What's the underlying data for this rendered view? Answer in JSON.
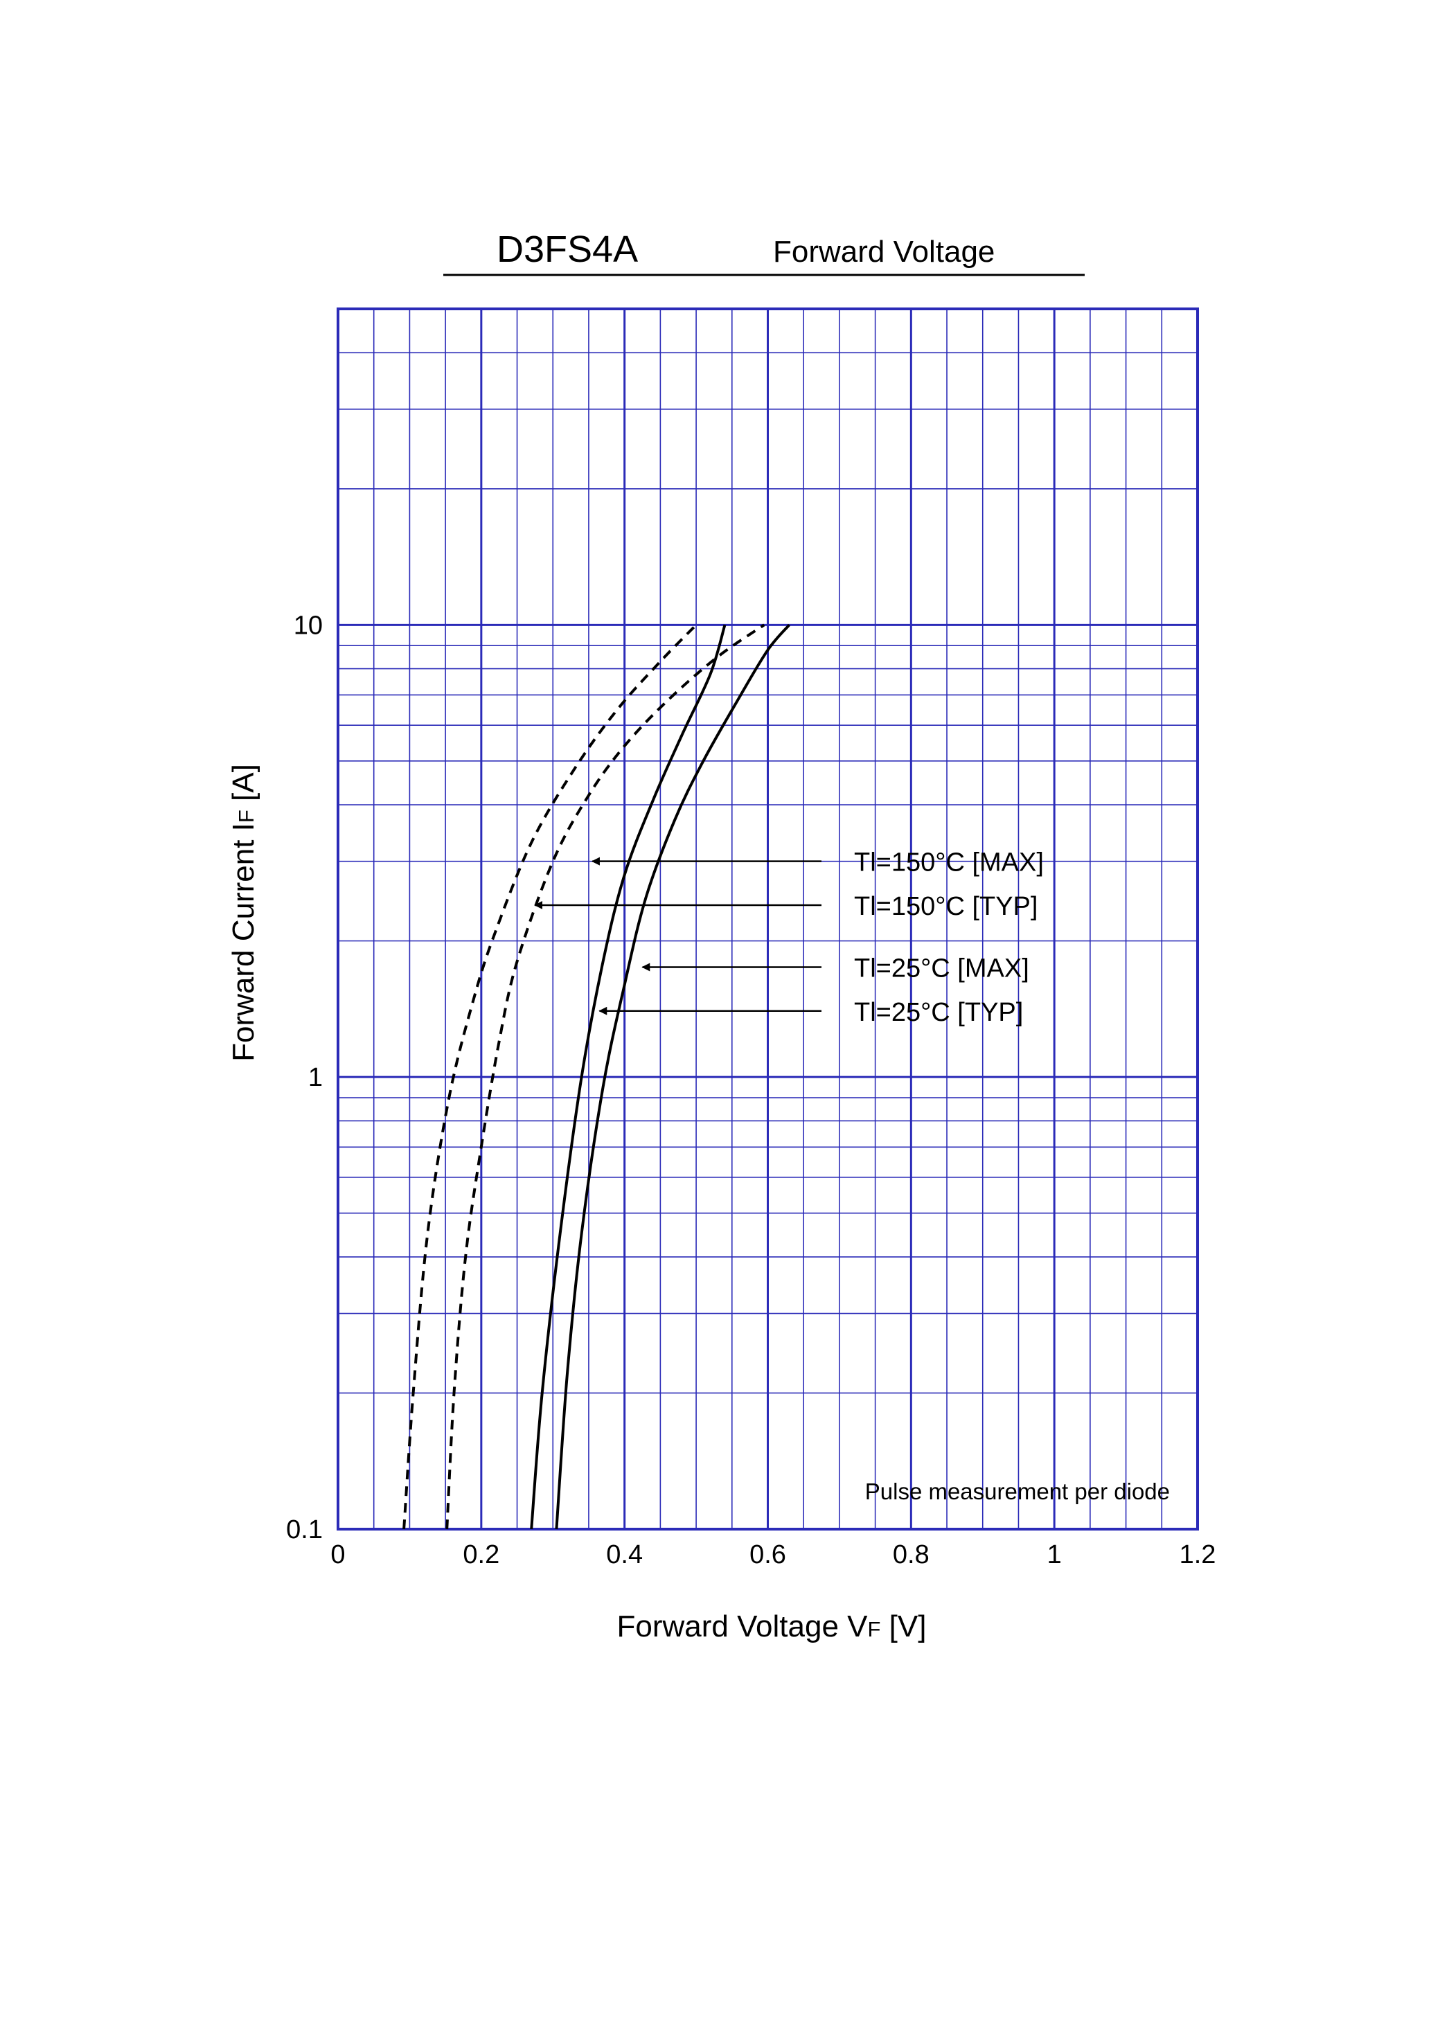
{
  "header": {
    "part_number": "D3FS4A",
    "chart_name": "Forward Voltage"
  },
  "chart_data": {
    "type": "line",
    "title": "D3FS4A Forward Voltage",
    "xlabel": {
      "main": "Forward Voltage  V",
      "sub": "F",
      "unit": "  [V]"
    },
    "ylabel": {
      "main": "Forward Current  I",
      "sub": "F",
      "unit": "  [A]"
    },
    "xlim": [
      0,
      1.2
    ],
    "ylim": [
      0.1,
      50
    ],
    "y_scale": "log",
    "grid": true,
    "x_ticks": [
      "0",
      "0.2",
      "0.4",
      "0.6",
      "0.8",
      "1",
      "1.2"
    ],
    "y_ticks": [
      "0.1",
      "1",
      "10"
    ],
    "grid_color": "#2b2bb8",
    "annotation": "Pulse measurement per diode",
    "series": [
      {
        "name": "Tl=150°C [MAX]",
        "line_style": "dashed",
        "points": [
          [
            0.152,
            0.1
          ],
          [
            0.162,
            0.2
          ],
          [
            0.178,
            0.4
          ],
          [
            0.2,
            0.7
          ],
          [
            0.225,
            1.2
          ],
          [
            0.25,
            1.8
          ],
          [
            0.3,
            3.0
          ],
          [
            0.35,
            4.2
          ],
          [
            0.4,
            5.4
          ],
          [
            0.46,
            6.8
          ],
          [
            0.53,
            8.5
          ],
          [
            0.595,
            10
          ]
        ]
      },
      {
        "name": "Tl=150°C [TYP]",
        "line_style": "dashed",
        "points": [
          [
            0.092,
            0.1
          ],
          [
            0.105,
            0.2
          ],
          [
            0.125,
            0.45
          ],
          [
            0.155,
            0.9
          ],
          [
            0.19,
            1.5
          ],
          [
            0.22,
            2.1
          ],
          [
            0.27,
            3.3
          ],
          [
            0.33,
            4.8
          ],
          [
            0.39,
            6.5
          ],
          [
            0.45,
            8.3
          ],
          [
            0.5,
            10
          ]
        ]
      },
      {
        "name": "Tl=25°C [MAX]",
        "line_style": "solid",
        "points": [
          [
            0.305,
            0.1
          ],
          [
            0.32,
            0.22
          ],
          [
            0.34,
            0.45
          ],
          [
            0.37,
            0.95
          ],
          [
            0.4,
            1.6
          ],
          [
            0.43,
            2.5
          ],
          [
            0.47,
            3.7
          ],
          [
            0.51,
            5.0
          ],
          [
            0.56,
            6.9
          ],
          [
            0.6,
            8.8
          ],
          [
            0.63,
            10
          ]
        ]
      },
      {
        "name": "Tl=25°C [TYP]",
        "line_style": "solid",
        "points": [
          [
            0.27,
            0.1
          ],
          [
            0.285,
            0.2
          ],
          [
            0.31,
            0.45
          ],
          [
            0.34,
            1.0
          ],
          [
            0.37,
            1.8
          ],
          [
            0.4,
            2.8
          ],
          [
            0.44,
            4.1
          ],
          [
            0.48,
            5.7
          ],
          [
            0.52,
            7.8
          ],
          [
            0.54,
            10
          ]
        ]
      }
    ],
    "callouts": [
      {
        "series": "Tl=150°C [MAX]",
        "label": "Tl=150°C [MAX]",
        "arrow_to": [
          0.355,
          3.0
        ]
      },
      {
        "series": "Tl=150°C [TYP]",
        "label": "Tl=150°C [TYP]",
        "arrow_to": [
          0.275,
          2.4
        ]
      },
      {
        "series": "Tl=25°C [MAX]",
        "label": "Tl=25°C [MAX]",
        "arrow_to": [
          0.425,
          1.75
        ]
      },
      {
        "series": "Tl=25°C [TYP]",
        "label": "Tl=25°C [TYP]",
        "arrow_to": [
          0.365,
          1.4
        ]
      }
    ]
  }
}
